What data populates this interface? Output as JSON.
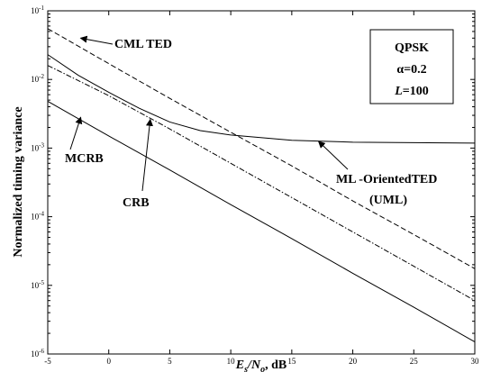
{
  "chart_data": {
    "type": "line",
    "xlabel": "Es/No, dB",
    "ylabel": "Normalized timing variance",
    "xlim": [
      -5,
      30
    ],
    "ylim": [
      1e-06,
      0.1
    ],
    "yscale": "log",
    "grid": false,
    "x_ticks": [
      "-5",
      "0",
      "5",
      "10",
      "15",
      "20",
      "25",
      "30"
    ],
    "y_ticks": [
      {
        "base": "10",
        "exp": "-1",
        "value": 0.1
      },
      {
        "base": "10",
        "exp": "-2",
        "value": 0.01
      },
      {
        "base": "10",
        "exp": "-3",
        "value": 0.001
      },
      {
        "base": "10",
        "exp": "-4",
        "value": 0.0001
      },
      {
        "base": "10",
        "exp": "-5",
        "value": 1e-05
      },
      {
        "base": "10",
        "exp": "-6",
        "value": 1e-06
      }
    ],
    "series": [
      {
        "key": "cml",
        "style": "dashed",
        "points": [
          [
            -5,
            0.055
          ],
          [
            0,
            0.017
          ],
          [
            5,
            0.0053
          ],
          [
            10,
            0.0017
          ],
          [
            15,
            0.00055
          ],
          [
            20,
            0.00017
          ],
          [
            25,
            5.5e-05
          ],
          [
            30,
            1.75e-05
          ]
        ]
      },
      {
        "key": "crb",
        "style": "dashdot",
        "points": [
          [
            -5,
            0.016
          ],
          [
            0,
            0.0058
          ],
          [
            5,
            0.0019
          ],
          [
            10,
            0.0006
          ],
          [
            15,
            0.00019
          ],
          [
            20,
            6e-05
          ],
          [
            25,
            1.9e-05
          ],
          [
            30,
            6e-06
          ]
        ]
      },
      {
        "key": "uml",
        "style": "solid",
        "points": [
          [
            -5,
            0.023
          ],
          [
            -2.5,
            0.0115
          ],
          [
            0,
            0.0065
          ],
          [
            2.5,
            0.0038
          ],
          [
            5,
            0.0024
          ],
          [
            7.5,
            0.0018
          ],
          [
            10,
            0.00155
          ],
          [
            15,
            0.0013
          ],
          [
            20,
            0.00122
          ],
          [
            25,
            0.0012
          ],
          [
            30,
            0.00118
          ]
        ]
      },
      {
        "key": "mcrb",
        "style": "solid",
        "points": [
          [
            -5,
            0.0048
          ],
          [
            0,
            0.0015
          ],
          [
            5,
            0.00048
          ],
          [
            10,
            0.00015
          ],
          [
            15,
            4.8e-05
          ],
          [
            20,
            1.5e-05
          ],
          [
            25,
            4.8e-06
          ],
          [
            30,
            1.5e-06
          ]
        ]
      }
    ],
    "annotations": [
      {
        "key": "cml",
        "text": "CML TED",
        "arrow_to": [
          -2.3,
          0.04
        ]
      },
      {
        "key": "mcrb",
        "text": "MCRB",
        "arrow_to": [
          -2.3,
          0.0028
        ]
      },
      {
        "key": "crb",
        "text": "CRB",
        "arrow_to": [
          3.4,
          0.0026
        ]
      },
      {
        "key": "uml_1",
        "text": "ML -OrientedTED",
        "arrow_to": [
          17.2,
          0.00125
        ]
      },
      {
        "key": "uml_2",
        "text": "(UML)"
      }
    ],
    "info_box": [
      "QPSK",
      "α=0.2",
      "L=100"
    ]
  }
}
